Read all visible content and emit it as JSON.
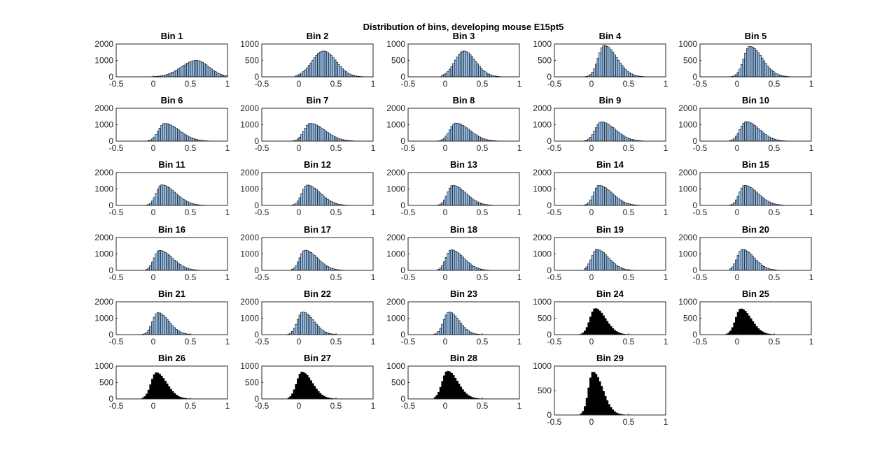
{
  "figure": {
    "title": "Distribution of bins, developing mouse E15pt5"
  },
  "colors": {
    "bar_light": "#96bde6",
    "bar_dark": "#000000",
    "edge": "#000000",
    "axis": "#262626"
  },
  "chart_data": {
    "type": "bar",
    "title": "Distribution of bins, developing mouse E15pt5",
    "grid": false,
    "xlim": [
      -0.5,
      1
    ],
    "xticks": [
      -0.5,
      0,
      0.5,
      1
    ],
    "xtick_labels": [
      "-0.5",
      "0",
      "0.5",
      "1"
    ],
    "bin_width": 0.025,
    "panels": [
      {
        "title": "Bin 1",
        "ylim": [
          0,
          2000
        ],
        "yticks": [
          0,
          1000,
          2000
        ],
        "ytick_labels": [
          "0",
          "1000",
          "2000"
        ],
        "peak_x": 0.58,
        "peak_y": 1000,
        "sd_left": 0.2,
        "sd_right": 0.17,
        "x_min": -0.1,
        "x_max": 1.0,
        "color": "light"
      },
      {
        "title": "Bin 2",
        "ylim": [
          0,
          1000
        ],
        "yticks": [
          0,
          500,
          1000
        ],
        "ytick_labels": [
          "0",
          "500",
          "1000"
        ],
        "peak_x": 0.33,
        "peak_y": 790,
        "sd_left": 0.15,
        "sd_right": 0.17,
        "x_min": -0.05,
        "x_max": 0.9,
        "color": "light"
      },
      {
        "title": "Bin 3",
        "ylim": [
          0,
          1000
        ],
        "yticks": [
          0,
          500,
          1000
        ],
        "ytick_labels": [
          "0",
          "500",
          "1000"
        ],
        "peak_x": 0.25,
        "peak_y": 790,
        "sd_left": 0.12,
        "sd_right": 0.16,
        "x_min": -0.05,
        "x_max": 0.85,
        "color": "light"
      },
      {
        "title": "Bin 4",
        "ylim": [
          0,
          1000
        ],
        "yticks": [
          0,
          500,
          1000
        ],
        "ytick_labels": [
          "0",
          "500",
          "1000"
        ],
        "peak_x": 0.17,
        "peak_y": 960,
        "sd_left": 0.08,
        "sd_right": 0.17,
        "x_min": -0.1,
        "x_max": 0.85,
        "color": "light"
      },
      {
        "title": "Bin 5",
        "ylim": [
          0,
          1000
        ],
        "yticks": [
          0,
          500,
          1000
        ],
        "ytick_labels": [
          "0",
          "500",
          "1000"
        ],
        "peak_x": 0.17,
        "peak_y": 930,
        "sd_left": 0.08,
        "sd_right": 0.17,
        "x_min": -0.1,
        "x_max": 0.8,
        "color": "light"
      },
      {
        "title": "Bin 6",
        "ylim": [
          0,
          2000
        ],
        "yticks": [
          0,
          1000,
          2000
        ],
        "ytick_labels": [
          "0",
          "1000",
          "2000"
        ],
        "peak_x": 0.15,
        "peak_y": 1080,
        "sd_left": 0.08,
        "sd_right": 0.2,
        "x_min": -0.1,
        "x_max": 0.9,
        "color": "light"
      },
      {
        "title": "Bin 7",
        "ylim": [
          0,
          2000
        ],
        "yticks": [
          0,
          1000,
          2000
        ],
        "ytick_labels": [
          "0",
          "1000",
          "2000"
        ],
        "peak_x": 0.15,
        "peak_y": 1080,
        "sd_left": 0.08,
        "sd_right": 0.2,
        "x_min": -0.1,
        "x_max": 0.9,
        "color": "light"
      },
      {
        "title": "Bin 8",
        "ylim": [
          0,
          2000
        ],
        "yticks": [
          0,
          1000,
          2000
        ],
        "ytick_labels": [
          "0",
          "1000",
          "2000"
        ],
        "peak_x": 0.14,
        "peak_y": 1100,
        "sd_left": 0.08,
        "sd_right": 0.19,
        "x_min": -0.1,
        "x_max": 0.85,
        "color": "light"
      },
      {
        "title": "Bin 9",
        "ylim": [
          0,
          2000
        ],
        "yticks": [
          0,
          1000,
          2000
        ],
        "ytick_labels": [
          "0",
          "1000",
          "2000"
        ],
        "peak_x": 0.13,
        "peak_y": 1170,
        "sd_left": 0.08,
        "sd_right": 0.19,
        "x_min": -0.1,
        "x_max": 0.85,
        "color": "light"
      },
      {
        "title": "Bin 10",
        "ylim": [
          0,
          2000
        ],
        "yticks": [
          0,
          1000,
          2000
        ],
        "ytick_labels": [
          "0",
          "1000",
          "2000"
        ],
        "peak_x": 0.12,
        "peak_y": 1190,
        "sd_left": 0.08,
        "sd_right": 0.18,
        "x_min": -0.1,
        "x_max": 0.8,
        "color": "light"
      },
      {
        "title": "Bin 11",
        "ylim": [
          0,
          2000
        ],
        "yticks": [
          0,
          1000,
          2000
        ],
        "ytick_labels": [
          "0",
          "1000",
          "2000"
        ],
        "peak_x": 0.11,
        "peak_y": 1250,
        "sd_left": 0.07,
        "sd_right": 0.19,
        "x_min": -0.1,
        "x_max": 0.8,
        "color": "light"
      },
      {
        "title": "Bin 12",
        "ylim": [
          0,
          2000
        ],
        "yticks": [
          0,
          1000,
          2000
        ],
        "ytick_labels": [
          "0",
          "1000",
          "2000"
        ],
        "peak_x": 0.11,
        "peak_y": 1240,
        "sd_left": 0.07,
        "sd_right": 0.18,
        "x_min": -0.1,
        "x_max": 0.8,
        "color": "light"
      },
      {
        "title": "Bin 13",
        "ylim": [
          0,
          2000
        ],
        "yticks": [
          0,
          1000,
          2000
        ],
        "ytick_labels": [
          "0",
          "1000",
          "2000"
        ],
        "peak_x": 0.1,
        "peak_y": 1220,
        "sd_left": 0.07,
        "sd_right": 0.18,
        "x_min": -0.1,
        "x_max": 0.75,
        "color": "light"
      },
      {
        "title": "Bin 14",
        "ylim": [
          0,
          2000
        ],
        "yticks": [
          0,
          1000,
          2000
        ],
        "ytick_labels": [
          "0",
          "1000",
          "2000"
        ],
        "peak_x": 0.1,
        "peak_y": 1220,
        "sd_left": 0.07,
        "sd_right": 0.18,
        "x_min": -0.15,
        "x_max": 0.75,
        "color": "light"
      },
      {
        "title": "Bin 15",
        "ylim": [
          0,
          2000
        ],
        "yticks": [
          0,
          1000,
          2000
        ],
        "ytick_labels": [
          "0",
          "1000",
          "2000"
        ],
        "peak_x": 0.1,
        "peak_y": 1220,
        "sd_left": 0.07,
        "sd_right": 0.18,
        "x_min": -0.1,
        "x_max": 0.75,
        "color": "light"
      },
      {
        "title": "Bin 16",
        "ylim": [
          0,
          2000
        ],
        "yticks": [
          0,
          1000,
          2000
        ],
        "ytick_labels": [
          "0",
          "1000",
          "2000"
        ],
        "peak_x": 0.08,
        "peak_y": 1220,
        "sd_left": 0.07,
        "sd_right": 0.18,
        "x_min": -0.1,
        "x_max": 0.75,
        "color": "light"
      },
      {
        "title": "Bin 17",
        "ylim": [
          0,
          2000
        ],
        "yticks": [
          0,
          1000,
          2000
        ],
        "ytick_labels": [
          "0",
          "1000",
          "2000"
        ],
        "peak_x": 0.08,
        "peak_y": 1230,
        "sd_left": 0.07,
        "sd_right": 0.17,
        "x_min": -0.1,
        "x_max": 0.75,
        "color": "light"
      },
      {
        "title": "Bin 18",
        "ylim": [
          0,
          2000
        ],
        "yticks": [
          0,
          1000,
          2000
        ],
        "ytick_labels": [
          "0",
          "1000",
          "2000"
        ],
        "peak_x": 0.08,
        "peak_y": 1250,
        "sd_left": 0.07,
        "sd_right": 0.17,
        "x_min": -0.1,
        "x_max": 0.75,
        "color": "light"
      },
      {
        "title": "Bin 19",
        "ylim": [
          0,
          2000
        ],
        "yticks": [
          0,
          1000,
          2000
        ],
        "ytick_labels": [
          "0",
          "1000",
          "2000"
        ],
        "peak_x": 0.07,
        "peak_y": 1280,
        "sd_left": 0.07,
        "sd_right": 0.16,
        "x_min": -0.1,
        "x_max": 0.75,
        "color": "light"
      },
      {
        "title": "Bin 20",
        "ylim": [
          0,
          2000
        ],
        "yticks": [
          0,
          1000,
          2000
        ],
        "ytick_labels": [
          "0",
          "1000",
          "2000"
        ],
        "peak_x": 0.07,
        "peak_y": 1280,
        "sd_left": 0.07,
        "sd_right": 0.16,
        "x_min": -0.1,
        "x_max": 0.75,
        "color": "light"
      },
      {
        "title": "Bin 21",
        "ylim": [
          0,
          2000
        ],
        "yticks": [
          0,
          1000,
          2000
        ],
        "ytick_labels": [
          "0",
          "1000",
          "2000"
        ],
        "peak_x": 0.06,
        "peak_y": 1340,
        "sd_left": 0.07,
        "sd_right": 0.15,
        "x_min": -0.15,
        "x_max": 0.75,
        "color": "light"
      },
      {
        "title": "Bin 22",
        "ylim": [
          0,
          2000
        ],
        "yticks": [
          0,
          1000,
          2000
        ],
        "ytick_labels": [
          "0",
          "1000",
          "2000"
        ],
        "peak_x": 0.05,
        "peak_y": 1380,
        "sd_left": 0.07,
        "sd_right": 0.15,
        "x_min": -0.15,
        "x_max": 0.75,
        "color": "light"
      },
      {
        "title": "Bin 23",
        "ylim": [
          0,
          2000
        ],
        "yticks": [
          0,
          1000,
          2000
        ],
        "ytick_labels": [
          "0",
          "1000",
          "2000"
        ],
        "peak_x": 0.05,
        "peak_y": 1380,
        "sd_left": 0.07,
        "sd_right": 0.14,
        "x_min": -0.15,
        "x_max": 0.7,
        "color": "light"
      },
      {
        "title": "Bin 24",
        "ylim": [
          0,
          1000
        ],
        "yticks": [
          0,
          500,
          1000
        ],
        "ytick_labels": [
          "0",
          "500",
          "1000"
        ],
        "peak_x": 0.05,
        "peak_y": 800,
        "sd_left": 0.07,
        "sd_right": 0.14,
        "x_min": -0.15,
        "x_max": 0.65,
        "color": "dark"
      },
      {
        "title": "Bin 25",
        "ylim": [
          0,
          1000
        ],
        "yticks": [
          0,
          500,
          1000
        ],
        "ytick_labels": [
          "0",
          "500",
          "1000"
        ],
        "peak_x": 0.05,
        "peak_y": 790,
        "sd_left": 0.07,
        "sd_right": 0.14,
        "x_min": -0.15,
        "x_max": 0.65,
        "color": "dark"
      },
      {
        "title": "Bin 26",
        "ylim": [
          0,
          1000
        ],
        "yticks": [
          0,
          500,
          1000
        ],
        "ytick_labels": [
          "0",
          "500",
          "1000"
        ],
        "peak_x": 0.04,
        "peak_y": 800,
        "sd_left": 0.07,
        "sd_right": 0.14,
        "x_min": -0.15,
        "x_max": 0.7,
        "color": "dark"
      },
      {
        "title": "Bin 27",
        "ylim": [
          0,
          1000
        ],
        "yticks": [
          0,
          500,
          1000
        ],
        "ytick_labels": [
          "0",
          "500",
          "1000"
        ],
        "peak_x": 0.04,
        "peak_y": 820,
        "sd_left": 0.07,
        "sd_right": 0.14,
        "x_min": -0.15,
        "x_max": 0.7,
        "color": "dark"
      },
      {
        "title": "Bin 28",
        "ylim": [
          0,
          1000
        ],
        "yticks": [
          0,
          500,
          1000
        ],
        "ytick_labels": [
          "0",
          "500",
          "1000"
        ],
        "peak_x": 0.03,
        "peak_y": 850,
        "sd_left": 0.07,
        "sd_right": 0.14,
        "x_min": -0.15,
        "x_max": 0.7,
        "color": "dark"
      },
      {
        "title": "Bin 29",
        "ylim": [
          0,
          1000
        ],
        "yticks": [
          0,
          500,
          1000
        ],
        "ytick_labels": [
          "0",
          "500",
          "1000"
        ],
        "peak_x": 0.02,
        "peak_y": 880,
        "sd_left": 0.06,
        "sd_right": 0.13,
        "x_min": -0.15,
        "x_max": 0.65,
        "color": "dark"
      }
    ]
  }
}
